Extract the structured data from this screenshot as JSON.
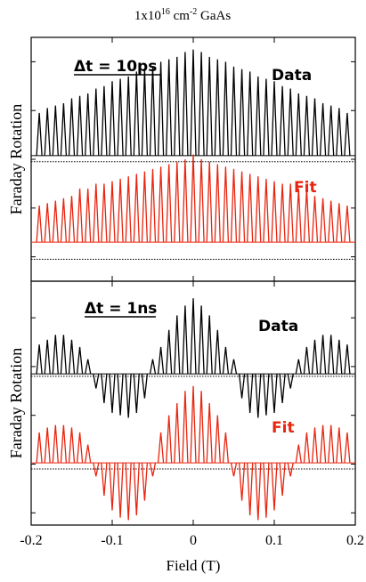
{
  "title": [
    "1x10",
    "16",
    " cm",
    "-2",
    " GaAs"
  ],
  "chart_data": [
    {
      "type": "comb",
      "annotation": "Δt = 10ps",
      "ylabel": "Faraday Rotation",
      "xlim": [
        -0.2,
        0.2
      ],
      "xticks": [
        -0.2,
        -0.1,
        0,
        0.1,
        0.2
      ],
      "ylim": [
        0,
        10
      ],
      "yticks": [
        1,
        3,
        5,
        7,
        9
      ],
      "x": [
        -0.19,
        -0.18,
        -0.17,
        -0.16,
        -0.15,
        -0.14,
        -0.13,
        -0.12,
        -0.11,
        -0.1,
        -0.09,
        -0.08,
        -0.07,
        -0.06,
        -0.05,
        -0.04,
        -0.03,
        -0.02,
        -0.01,
        0,
        0.01,
        0.02,
        0.03,
        0.04,
        0.05,
        0.06,
        0.07,
        0.08,
        0.09,
        0.1,
        0.11,
        0.12,
        0.13,
        0.14,
        0.15,
        0.16,
        0.17,
        0.18,
        0.19
      ],
      "series": [
        {
          "name": "Data",
          "color": "#000000",
          "baseline": 5.15,
          "reference": 4.9,
          "values": [
            6.9,
            7.1,
            7.2,
            7.3,
            7.5,
            7.6,
            7.7,
            7.9,
            8.0,
            8.2,
            8.3,
            8.4,
            8.6,
            8.7,
            8.8,
            9.0,
            9.1,
            9.2,
            9.4,
            9.5,
            9.4,
            9.2,
            9.1,
            9.0,
            8.8,
            8.7,
            8.6,
            8.4,
            8.3,
            8.2,
            8.0,
            7.9,
            7.7,
            7.6,
            7.5,
            7.3,
            7.2,
            7.1,
            6.9
          ]
        },
        {
          "name": "Fit",
          "color": "#e8250f",
          "baseline": 1.6,
          "reference": 0.9,
          "values": [
            3.1,
            3.2,
            3.3,
            3.4,
            3.5,
            3.8,
            3.8,
            4.0,
            4.0,
            4.1,
            4.2,
            4.3,
            4.4,
            4.5,
            4.6,
            4.7,
            4.8,
            4.9,
            5.0,
            5.2,
            5.0,
            4.9,
            4.8,
            4.7,
            4.6,
            4.5,
            4.4,
            4.3,
            4.2,
            4.1,
            4.0,
            4.0,
            3.8,
            3.8,
            3.5,
            3.4,
            3.3,
            3.2,
            3.1
          ]
        }
      ]
    },
    {
      "type": "comb",
      "annotation": "Δt = 1ns",
      "ylabel": "Faraday Rotation",
      "xlabel": "Field (T)",
      "xlim": [
        -0.2,
        0.2
      ],
      "xticks": [
        -0.2,
        -0.1,
        0,
        0.1,
        0.2
      ],
      "ylim": [
        0,
        10
      ],
      "yticks": [
        0.5,
        2.5,
        4.5,
        6.5,
        8.5
      ],
      "x": [
        -0.19,
        -0.18,
        -0.17,
        -0.16,
        -0.15,
        -0.14,
        -0.13,
        -0.12,
        -0.11,
        -0.1,
        -0.09,
        -0.08,
        -0.07,
        -0.06,
        -0.05,
        -0.04,
        -0.03,
        -0.02,
        -0.01,
        0,
        0.01,
        0.02,
        0.03,
        0.04,
        0.05,
        0.06,
        0.07,
        0.08,
        0.09,
        0.1,
        0.11,
        0.12,
        0.13,
        0.14,
        0.15,
        0.16,
        0.17,
        0.18,
        0.19
      ],
      "series": [
        {
          "name": "Data",
          "color": "#000000",
          "baseline": 6.2,
          "reference": 6.1,
          "values": [
            7.4,
            7.6,
            7.8,
            7.8,
            7.6,
            7.3,
            6.8,
            5.6,
            5.0,
            4.6,
            4.5,
            4.4,
            4.6,
            5.2,
            6.8,
            7.3,
            8.0,
            8.6,
            9.0,
            9.3,
            9.0,
            8.6,
            8.0,
            7.3,
            6.8,
            5.2,
            4.6,
            4.4,
            4.5,
            4.6,
            5.0,
            5.6,
            6.8,
            7.3,
            7.6,
            7.8,
            7.8,
            7.6,
            7.4
          ]
        },
        {
          "name": "Fit",
          "color": "#e8250f",
          "baseline": 2.55,
          "reference": 2.3,
          "values": [
            3.8,
            4.0,
            4.1,
            4.1,
            4.0,
            3.8,
            3.3,
            2.0,
            1.2,
            0.6,
            0.3,
            0.2,
            0.4,
            1.0,
            2.0,
            3.8,
            4.5,
            5.0,
            5.5,
            5.7,
            5.5,
            5.0,
            4.5,
            3.8,
            2.0,
            1.0,
            0.4,
            0.2,
            0.3,
            0.6,
            1.2,
            2.0,
            3.3,
            3.8,
            4.0,
            4.1,
            4.1,
            4.0,
            3.8
          ]
        }
      ]
    }
  ]
}
